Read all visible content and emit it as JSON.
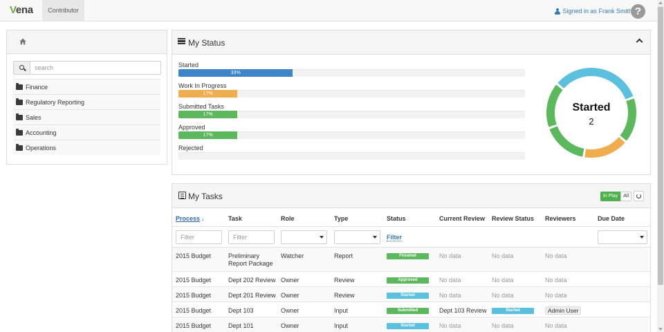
{
  "app": {
    "logo": "vena",
    "mode_tab": "Contributor",
    "signed_in": "Signed in as Frank Smith",
    "help": "?"
  },
  "sidebar": {
    "search_placeholder": "search",
    "folders": [
      {
        "label": "Finance"
      },
      {
        "label": "Regulatory Reporting"
      },
      {
        "label": "Sales"
      },
      {
        "label": "Accounting"
      },
      {
        "label": "Operations"
      }
    ]
  },
  "status": {
    "title": "My Status",
    "bars": [
      {
        "label": "Started",
        "percent": 33,
        "percent_label": "33%",
        "color": "#3d85c6"
      },
      {
        "label": "Work In Progress",
        "percent": 17,
        "percent_label": "17%",
        "color": "#f0ad4e"
      },
      {
        "label": "Submitted Tasks",
        "percent": 17,
        "percent_label": "17%",
        "color": "#5cb85c"
      },
      {
        "label": "Approved",
        "percent": 17,
        "percent_label": "17%",
        "color": "#5cb85c"
      },
      {
        "label": "Rejected",
        "percent": 0,
        "percent_label": "",
        "color": "#d9534f"
      }
    ],
    "donut": {
      "label": "Started",
      "count": "2"
    }
  },
  "chart_data": {
    "type": "pie",
    "categories": [
      "Started",
      "Approved",
      "Work In Progress",
      "Submitted Tasks",
      "Finished"
    ],
    "values": [
      2,
      1,
      1,
      1,
      1
    ],
    "colors": [
      "#5bc0de",
      "#5cb85c",
      "#f0ad4e",
      "#5cb85c",
      "#5cb85c"
    ],
    "center_label": "Started",
    "center_value": 2
  },
  "tasks": {
    "title": "My Tasks",
    "toggle_inplay": "In Play",
    "toggle_all": "All",
    "columns": [
      "Process",
      "Task",
      "Role",
      "Type",
      "Status",
      "Current Review",
      "Review Status",
      "Reviewers",
      "Due Date"
    ],
    "filter_placeholder": "Filter",
    "filter_link": "Filter",
    "rows": [
      {
        "process": "2015 Budget",
        "task": "Preliminary Report Package",
        "role": "Watcher",
        "type": "Report",
        "status": "Finished",
        "status_color": "#5cb85c",
        "current_review": "No data",
        "review_status": "No data",
        "review_status_color": "",
        "reviewers": "No data"
      },
      {
        "process": "2015 Budget",
        "task": "Dept 202 Review",
        "role": "Owner",
        "type": "Review",
        "status": "Approved",
        "status_color": "#5cb85c",
        "current_review": "No data",
        "review_status": "No data",
        "review_status_color": "",
        "reviewers": "No data"
      },
      {
        "process": "2015 Budget",
        "task": "Dept 201 Review",
        "role": "Owner",
        "type": "Review",
        "status": "Started",
        "status_color": "#5bc0de",
        "current_review": "No data",
        "review_status": "No data",
        "review_status_color": "",
        "reviewers": "No data"
      },
      {
        "process": "2015 Budget",
        "task": "Dept 103",
        "role": "Owner",
        "type": "Input",
        "status": "Submitted",
        "status_color": "#5cb85c",
        "current_review": "Dept 103 Review",
        "review_status": "Started",
        "review_status_color": "#5bc0de",
        "reviewers": "Admin User"
      },
      {
        "process": "2015 Budget",
        "task": "Dept 101",
        "role": "Owner",
        "type": "Input",
        "status": "Started",
        "status_color": "#5bc0de",
        "current_review": "No data",
        "review_status": "No data",
        "review_status_color": "",
        "reviewers": "No data"
      }
    ]
  }
}
